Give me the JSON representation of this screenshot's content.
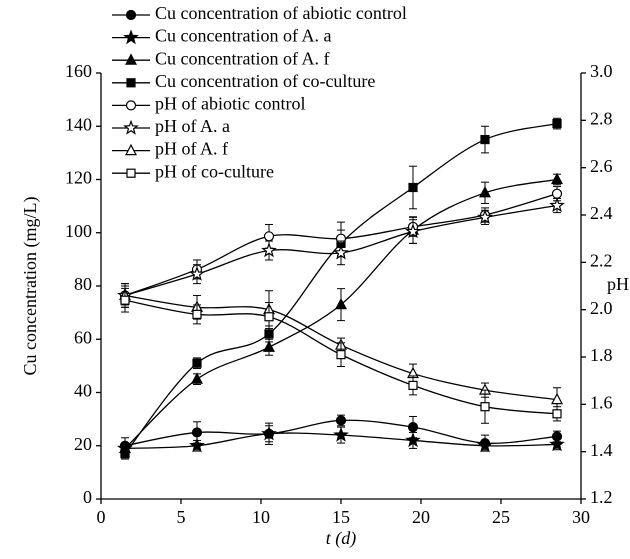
{
  "chart_data": {
    "type": "line",
    "x_label": "t (d)",
    "y_label": "Cu concentration (mg/L)",
    "y2_label": "pH",
    "xlim": [
      0,
      30
    ],
    "xticks": [
      0,
      5,
      10,
      15,
      20,
      25,
      30
    ],
    "ylim": [
      0,
      160
    ],
    "yticks": [
      0,
      20,
      40,
      60,
      80,
      100,
      120,
      140,
      160
    ],
    "y2lim": [
      1.2,
      3.0
    ],
    "y2ticks": [
      1.2,
      1.4,
      1.6,
      1.8,
      {
        "value": 2.0,
        "label": "2.0"
      },
      2.2,
      2.4,
      2.6,
      2.8,
      {
        "value": 3.0,
        "label": "3.0"
      }
    ],
    "x": [
      1.5,
      6,
      10.5,
      15,
      19.5,
      24,
      28.5
    ],
    "series": [
      {
        "name": "Cu concentration of abiotic control",
        "color": "#000000",
        "marker": "circle",
        "filled": true,
        "values": [
          20,
          25,
          24.5,
          29.5,
          27,
          21,
          23.5
        ],
        "errors": [
          3,
          4,
          4,
          2,
          4,
          3,
          2
        ]
      },
      {
        "name": "Cu concentration of A. a",
        "color": "#000000",
        "marker": "star",
        "filled": true,
        "values": [
          19,
          20,
          24.5,
          24,
          22,
          20,
          20.5
        ],
        "errors": [
          2,
          2,
          3,
          3,
          3,
          2,
          2
        ]
      },
      {
        "name": "Cu concentration of A. f",
        "color": "#000000",
        "marker": "triangle",
        "filled": true,
        "values": [
          19,
          45,
          57,
          73,
          101,
          115,
          120
        ],
        "errors": [
          2,
          2,
          3,
          6,
          5,
          4,
          2
        ]
      },
      {
        "name": "Cu concentration of co-culture",
        "color": "#000000",
        "marker": "square",
        "filled": true,
        "values": [
          17,
          51,
          62,
          96,
          117,
          135,
          141
        ],
        "errors": [
          2,
          2,
          3,
          5,
          8,
          5,
          2
        ]
      },
      {
        "name": "pH of abiotic control",
        "color": "#000000",
        "marker": "circle",
        "filled": false,
        "axis": "y2",
        "values": [
          2.06,
          2.17,
          2.31,
          2.3,
          2.35,
          2.4,
          2.49
        ],
        "errors": [
          0.05,
          0.04,
          0.05,
          0.07,
          0.04,
          0.03,
          0.03
        ]
      },
      {
        "name": "pH of A. a",
        "color": "#000000",
        "marker": "star",
        "filled": false,
        "axis": "y2",
        "values": [
          2.06,
          2.15,
          2.25,
          2.24,
          2.33,
          2.39,
          2.44
        ],
        "errors": [
          0.05,
          0.04,
          0.04,
          0.05,
          0.05,
          0.03,
          0.03
        ]
      },
      {
        "name": "pH of A. f",
        "color": "#000000",
        "marker": "triangle",
        "filled": false,
        "axis": "y2",
        "values": [
          2.06,
          2.01,
          2.0,
          1.85,
          1.73,
          1.66,
          1.62
        ],
        "errors": [
          0.04,
          0.05,
          0.08,
          0.03,
          0.04,
          0.03,
          0.05
        ]
      },
      {
        "name": "pH of co-culture",
        "color": "#000000",
        "marker": "square",
        "filled": false,
        "axis": "y2",
        "values": [
          2.04,
          1.98,
          1.97,
          1.81,
          1.68,
          1.59,
          1.56
        ],
        "errors": [
          0.05,
          0.04,
          0.06,
          0.05,
          0.04,
          0.07,
          0.03
        ]
      }
    ]
  }
}
